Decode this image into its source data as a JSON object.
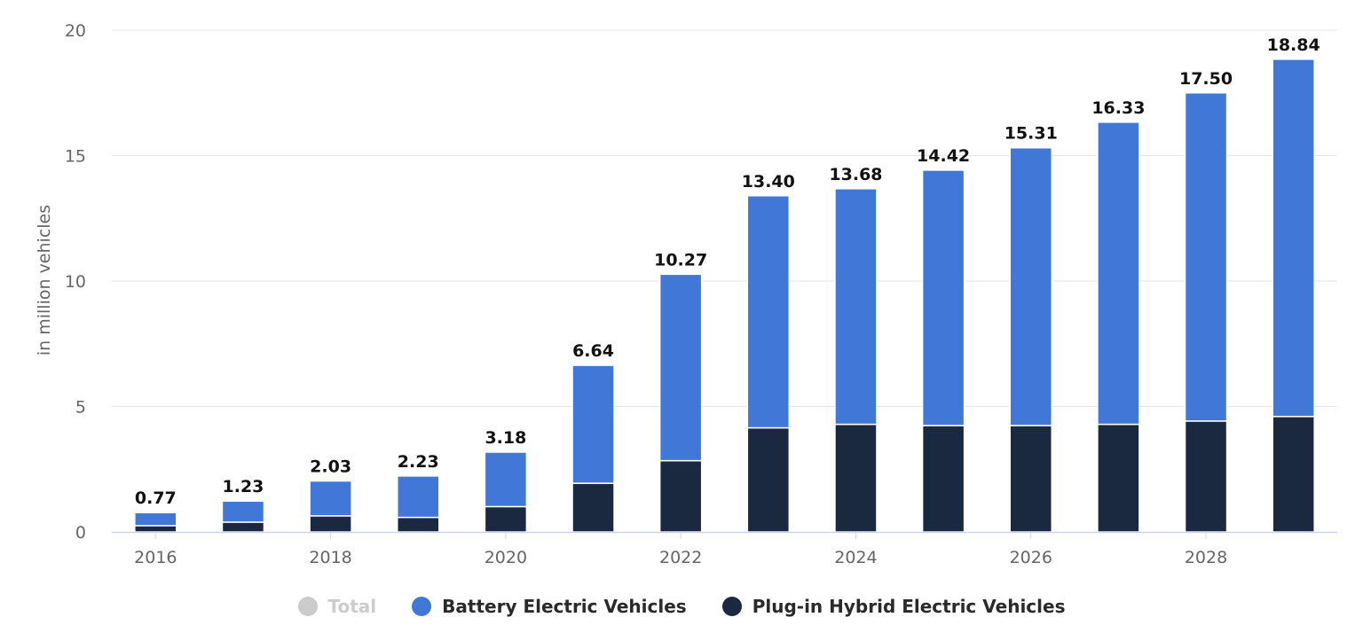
{
  "chart_data": {
    "type": "bar",
    "stacked": true,
    "categories": [
      "2016",
      "2017",
      "2018",
      "2019",
      "2020",
      "2021",
      "2022",
      "2023",
      "2024",
      "2025",
      "2026",
      "2027",
      "2028",
      "2029"
    ],
    "x_tick_labels": [
      "2016",
      "2018",
      "2020",
      "2022",
      "2024",
      "2026",
      "2028"
    ],
    "series": [
      {
        "name": "Plug-in Hybrid Electric Vehicles",
        "color": "#1a2940",
        "values": [
          0.25,
          0.39,
          0.64,
          0.58,
          1.01,
          1.94,
          2.84,
          4.15,
          4.29,
          4.24,
          4.24,
          4.29,
          4.42,
          4.6
        ]
      },
      {
        "name": "Battery Electric Vehicles",
        "color": "#4178d8",
        "values": [
          0.52,
          0.84,
          1.39,
          1.65,
          2.17,
          4.7,
          7.43,
          9.25,
          9.39,
          10.18,
          11.07,
          12.04,
          13.08,
          14.24
        ]
      }
    ],
    "totals": [
      "0.77",
      "1.23",
      "2.03",
      "2.23",
      "3.18",
      "6.64",
      "10.27",
      "13.40",
      "13.68",
      "14.42",
      "15.31",
      "16.33",
      "17.50",
      "18.84"
    ],
    "ylabel": "in million vehicles",
    "yticks": [
      "0",
      "5",
      "10",
      "15",
      "20"
    ],
    "ylim": [
      0,
      20
    ],
    "grid": true,
    "legend_position": "bottom",
    "legend": [
      {
        "label": "Total",
        "color": "#cccccc",
        "active": false
      },
      {
        "label": "Battery Electric Vehicles",
        "color": "#4178d8",
        "active": true
      },
      {
        "label": "Plug-in Hybrid Electric Vehicles",
        "color": "#1a2940",
        "active": true
      }
    ]
  }
}
